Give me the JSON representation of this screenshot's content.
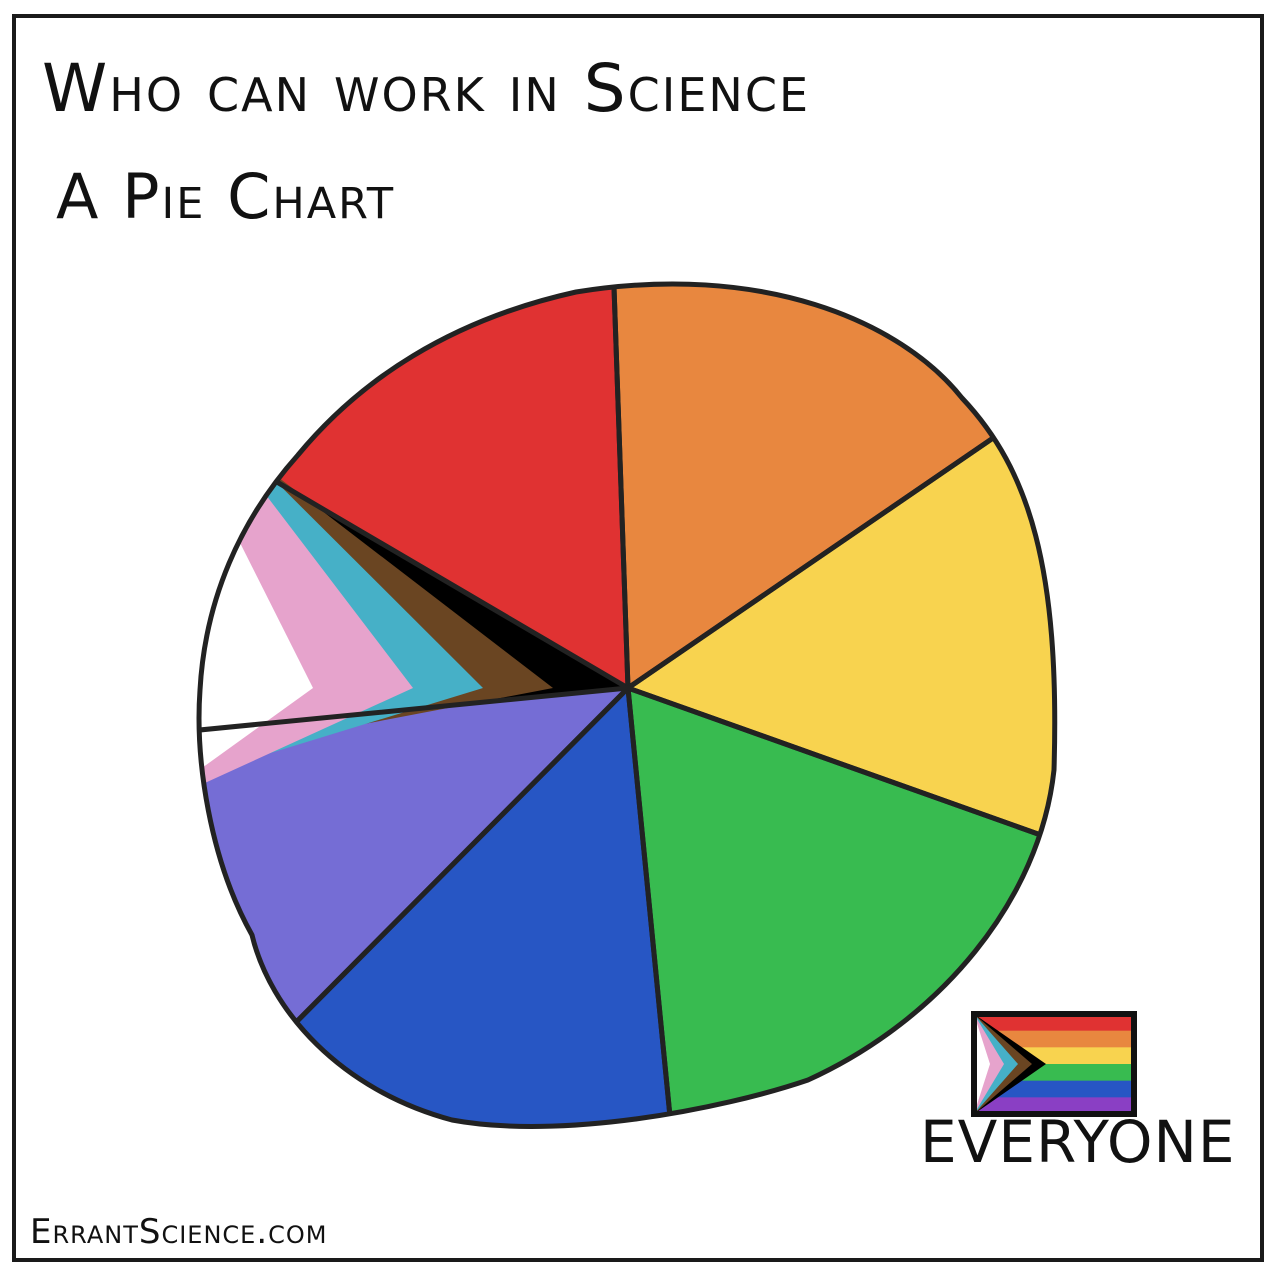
{
  "title": "Who can work in Science",
  "subtitle": "A Pie Chart",
  "credit": "ErrantScience.com",
  "colors": {
    "red": "#e03232",
    "orange": "#e8873f",
    "yellow": "#f8d34f",
    "green": "#38bb50",
    "blue": "#2756c4",
    "purple": "#756dd5",
    "black": "#000000",
    "brown": "#6a4522",
    "light_blue": "#46b0c7",
    "pink": "#e6a3cc",
    "white": "#ffffff",
    "outline": "#222222"
  },
  "chart_data": {
    "type": "pie",
    "title": "Who can work in Science",
    "subtitle": "A Pie Chart",
    "slices": [
      {
        "color": "red",
        "value": 16
      },
      {
        "color": "orange",
        "value": 16
      },
      {
        "color": "yellow",
        "value": 15
      },
      {
        "color": "green",
        "value": 18
      },
      {
        "color": "blue",
        "value": 14
      },
      {
        "color": "purple",
        "value": 11
      },
      {
        "color": "progress-chevron",
        "value": 10
      }
    ],
    "legend": [
      {
        "label": "EVERYONE",
        "icon": "progress-pride-flag-icon"
      }
    ],
    "legend_position": "bottom-right"
  }
}
